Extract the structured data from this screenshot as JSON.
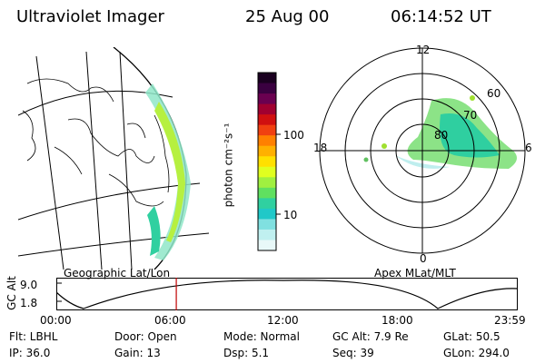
{
  "header": {
    "instrument": "Ultraviolet Imager",
    "date": "25 Aug 00",
    "time": "06:14:52 UT"
  },
  "map_panel": {
    "caption": "Geographic Lat/Lon"
  },
  "colorbar": {
    "unit_label": "photon cm⁻²s⁻¹",
    "ticks": [
      "100",
      "10"
    ],
    "colors": [
      "#1a0020",
      "#3a0040",
      "#6a0050",
      "#a00030",
      "#d01010",
      "#f04010",
      "#ff8000",
      "#ffb000",
      "#ffe000",
      "#e0ff20",
      "#a0f040",
      "#60e060",
      "#30d0a0",
      "#20c8c8",
      "#80e0e0",
      "#c0f0f0",
      "#e8f8f8"
    ]
  },
  "polar_panel": {
    "caption": "Apex MLat/MLT",
    "mlt_labels": [
      "12",
      "18",
      "6",
      "0"
    ],
    "lat_labels": [
      "60",
      "70",
      "80"
    ]
  },
  "orbit_plot": {
    "ylabel": "GC Alt",
    "yticks": [
      "9.0",
      "1.8"
    ],
    "xticks": [
      "00:00",
      "06:00",
      "12:00",
      "18:00",
      "23:59"
    ],
    "marker_fraction": 0.26,
    "marker_color": "#c00000"
  },
  "info_rows": {
    "row1": {
      "filter": "Flt: LBHL",
      "door": "Door: Open",
      "mode": "Mode: Normal",
      "gc_alt": "GC Alt: 7.9 Re",
      "glat": "GLat:  50.5"
    },
    "row2": {
      "ip": "IP: 36.0",
      "gain": "Gain: 13",
      "dsp": "Dsp:    5.1",
      "seq": "Seq: 39",
      "glon": "GLon: 294.0"
    }
  }
}
